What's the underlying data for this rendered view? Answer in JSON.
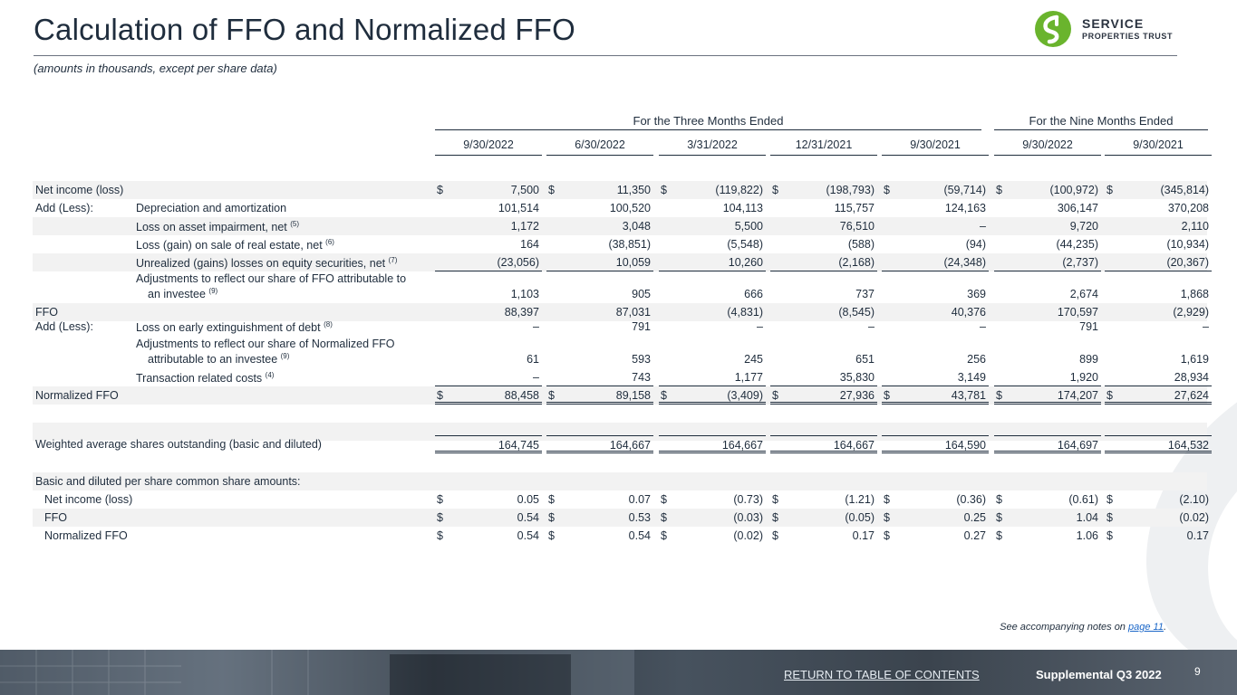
{
  "header": {
    "title": "Calculation of FFO and Normalized FFO",
    "subtitle": "(amounts in thousands, except per share data)",
    "logo_line1": "SERVICE",
    "logo_line2": "PROPERTIES TRUST",
    "logo_color": "#6ab42d"
  },
  "table": {
    "period_headers": [
      "For the Three Months Ended",
      "For the Nine Months Ended"
    ],
    "columns": [
      "9/30/2022",
      "6/30/2022",
      "3/31/2022",
      "12/31/2021",
      "9/30/2021",
      "9/30/2022",
      "9/30/2021"
    ],
    "rows": [
      {
        "group": "Net income (loss)",
        "label": "",
        "dollar": true,
        "values": [
          "7,500",
          "11,350",
          "(119,822)",
          "(198,793)",
          "(59,714)",
          "(100,972)",
          "(345,814)"
        ]
      },
      {
        "group": "Add (Less):",
        "label": "Depreciation and amortization",
        "values": [
          "101,514",
          "100,520",
          "104,113",
          "115,757",
          "124,163",
          "306,147",
          "370,208"
        ]
      },
      {
        "group": "",
        "label": "Loss on asset impairment, net",
        "note": "(5)",
        "values": [
          "1,172",
          "3,048",
          "5,500",
          "76,510",
          "–",
          "9,720",
          "2,110"
        ]
      },
      {
        "group": "",
        "label": "Loss (gain) on sale of real estate, net",
        "note": "(6)",
        "values": [
          "164",
          "(38,851)",
          "(5,548)",
          "(588)",
          "(94)",
          "(44,235)",
          "(10,934)"
        ]
      },
      {
        "group": "",
        "label": "Unrealized (gains) losses on equity securities, net",
        "note": "(7)",
        "values": [
          "(23,056)",
          "10,059",
          "10,260",
          "(2,168)",
          "(24,348)",
          "(2,737)",
          "(20,367)"
        ]
      },
      {
        "group": "",
        "label": "Adjustments to reflect our share of FFO attributable to",
        "label_cont": "an investee",
        "note": "(9)",
        "values": [
          "1,103",
          "905",
          "666",
          "737",
          "369",
          "2,674",
          "1,868"
        ]
      },
      {
        "group": "FFO",
        "label": "",
        "values": [
          "88,397",
          "87,031",
          "(4,831)",
          "(8,545)",
          "40,376",
          "170,597",
          "(2,929)"
        ]
      },
      {
        "group": "Add (Less):",
        "label": "Loss on early extinguishment of debt",
        "note": "(8)",
        "values": [
          "–",
          "791",
          "–",
          "–",
          "–",
          "791",
          "–"
        ]
      },
      {
        "group": "",
        "label": "Adjustments to reflect our share of Normalized FFO",
        "label_cont": "attributable to an investee",
        "note": "(9)",
        "values": [
          "61",
          "593",
          "245",
          "651",
          "256",
          "899",
          "1,619"
        ]
      },
      {
        "group": "",
        "label": "Transaction related costs",
        "note": "(4)",
        "values": [
          "–",
          "743",
          "1,177",
          "35,830",
          "3,149",
          "1,920",
          "28,934"
        ]
      },
      {
        "group": "Normalized FFO",
        "label": "",
        "dollar": true,
        "values": [
          "88,458",
          "89,158",
          "(3,409)",
          "27,936",
          "43,781",
          "174,207",
          "27,624"
        ]
      },
      {
        "group": "Weighted average shares outstanding (basic and diluted)",
        "label": "",
        "values": [
          "164,745",
          "164,667",
          "164,667",
          "164,667",
          "164,590",
          "164,697",
          "164,532"
        ]
      },
      {
        "group": "Basic and diluted per share common share amounts:",
        "label": "",
        "values": []
      },
      {
        "group": "Net income (loss)",
        "label": "",
        "dollar": true,
        "values": [
          "0.05",
          "0.07",
          "(0.73)",
          "(1.21)",
          "(0.36)",
          "(0.61)",
          "(2.10)"
        ]
      },
      {
        "group": "FFO",
        "label": "",
        "dollar": true,
        "values": [
          "0.54",
          "0.53",
          "(0.03)",
          "(0.05)",
          "0.25",
          "1.04",
          "(0.02)"
        ]
      },
      {
        "group": "Normalized FFO",
        "label": "",
        "dollar": true,
        "values": [
          "0.54",
          "0.54",
          "(0.02)",
          "0.17",
          "0.27",
          "1.06",
          "0.17"
        ]
      }
    ],
    "dollar_sign": "$"
  },
  "note": {
    "prefix": "See accompanying notes on ",
    "link": "page 11",
    "suffix": "."
  },
  "footer": {
    "toc_link": "RETURN TO TABLE OF CONTENTS",
    "supplemental": "Supplemental Q3 2022",
    "page_number": "9"
  }
}
